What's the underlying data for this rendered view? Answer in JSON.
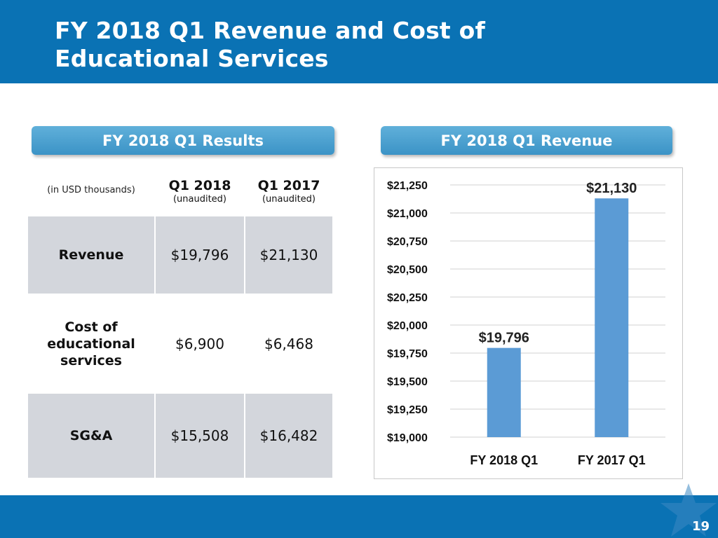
{
  "slide": {
    "title": "FY 2018 Q1 Revenue and Cost of Educational Services",
    "page_number": "19",
    "colors": {
      "brand_blue": "#0a72b4",
      "bar_blue": "#5b9bd5",
      "table_shade": "#d3d6dc"
    }
  },
  "results_panel": {
    "label": "FY 2018 Q1 Results",
    "unit_note": "(in USD thousands)",
    "columns": [
      {
        "year": "Q1 2018",
        "sub": "(unaudited)"
      },
      {
        "year": "Q1 2017",
        "sub": "(unaudited)"
      }
    ],
    "rows": [
      {
        "label": "Revenue",
        "q1_2018": "$19,796",
        "q1_2017": "$21,130"
      },
      {
        "label": "Cost of educational services",
        "q1_2018": "$6,900",
        "q1_2017": "$6,468"
      },
      {
        "label": "SG&A",
        "q1_2018": "$15,508",
        "q1_2017": "$16,482"
      }
    ]
  },
  "revenue_panel": {
    "label": "FY 2018 Q1 Revenue"
  },
  "chart_data": {
    "type": "bar",
    "title": "FY 2018 Q1 Revenue",
    "categories": [
      "FY 2018 Q1",
      "FY 2017 Q1"
    ],
    "values": [
      19796,
      21130
    ],
    "data_labels": [
      "$19,796",
      "$21,130"
    ],
    "ylim": [
      19000,
      21250
    ],
    "yticks": [
      19000,
      19250,
      19500,
      19750,
      20000,
      20250,
      20500,
      20750,
      21000,
      21250
    ],
    "ytick_labels": [
      "$19,000",
      "$19,250",
      "$19,500",
      "$19,750",
      "$20,000",
      "$20,250",
      "$20,500",
      "$20,750",
      "$21,000",
      "$21,250"
    ],
    "xlabel": "",
    "ylabel": "",
    "grid": true,
    "legend": "none"
  }
}
